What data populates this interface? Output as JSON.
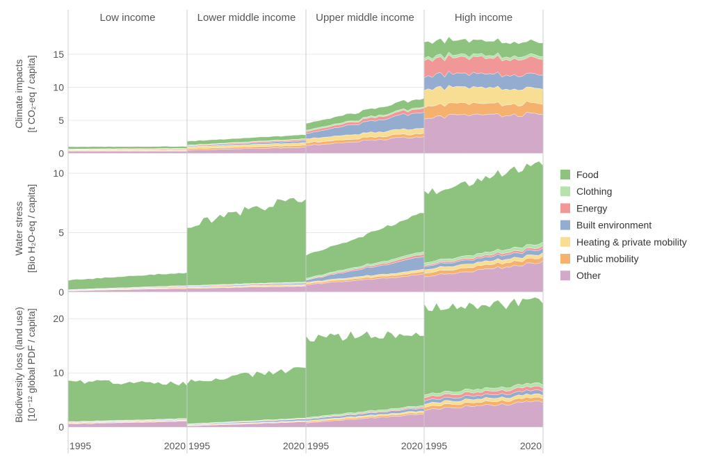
{
  "chart_data": {
    "type": "area",
    "stacked": true,
    "columns": [
      "Low income",
      "Lower middle income",
      "Upper middle income",
      "High income"
    ],
    "x_axis": {
      "ticks": [
        "1995",
        "2020"
      ]
    },
    "legend": {
      "placement": "right",
      "items": [
        {
          "name": "Food",
          "color": "#8dc27f"
        },
        {
          "name": "Clothing",
          "color": "#b5e2ad"
        },
        {
          "name": "Energy",
          "color": "#f19797"
        },
        {
          "name": "Built environment",
          "color": "#93acd0"
        },
        {
          "name": "Heating & private mobility",
          "color": "#f7de92"
        },
        {
          "name": "Public mobility",
          "color": "#f5b26e"
        },
        {
          "name": "Other",
          "color": "#d2a9c8"
        }
      ]
    },
    "series_order_bottom_to_top": [
      "Other",
      "Public mobility",
      "Heating & private mobility",
      "Built environment",
      "Energy",
      "Clothing",
      "Food"
    ],
    "rows": [
      {
        "id": "climate",
        "ylabel": [
          "Climate impacts",
          "[t CO₂-eq / capita]"
        ],
        "ylim": [
          -1,
          19
        ],
        "yticks": [
          0,
          5,
          10,
          15
        ],
        "panels": {
          "Low income": {
            "Other": [
              0.3,
              0.3
            ],
            "Public mobility": [
              0.1,
              0.1
            ],
            "Heating & private mobility": [
              0.1,
              0.1
            ],
            "Built environment": [
              0.05,
              0.1
            ],
            "Energy": [
              0.05,
              0.1
            ],
            "Clothing": [
              0.05,
              0.05
            ],
            "Food": [
              0.35,
              0.3
            ]
          },
          "Lower middle income": {
            "Other": [
              0.5,
              0.9
            ],
            "Public mobility": [
              0.2,
              0.3
            ],
            "Heating & private mobility": [
              0.3,
              0.4
            ],
            "Built environment": [
              0.1,
              0.3
            ],
            "Energy": [
              0.1,
              0.2
            ],
            "Clothing": [
              0.05,
              0.1
            ],
            "Food": [
              0.6,
              0.6
            ]
          },
          "Upper middle income": {
            "Other": [
              1.2,
              2.6
            ],
            "Public mobility": [
              0.4,
              0.5
            ],
            "Heating & private mobility": [
              0.6,
              0.8
            ],
            "Built environment": [
              0.8,
              2.5
            ],
            "Energy": [
              0.3,
              0.6
            ],
            "Clothing": [
              0.2,
              0.2
            ],
            "Food": [
              1.0,
              1.3
            ]
          },
          "High income": {
            "Other": [
              5.5,
              6.0
            ],
            "Public mobility": [
              1.8,
              1.6
            ],
            "Heating & private mobility": [
              2.6,
              2.2
            ],
            "Built environment": [
              2.0,
              2.1
            ],
            "Energy": [
              2.5,
              2.4
            ],
            "Clothing": [
              0.4,
              0.4
            ],
            "Food": [
              2.3,
              2.1
            ]
          }
        }
      },
      {
        "id": "water",
        "ylabel": [
          "Water stress",
          "[Bio H₂O-eq / capita]"
        ],
        "ylim": [
          -0.3,
          11
        ],
        "yticks": [
          0,
          5,
          10
        ],
        "panels": {
          "Low income": {
            "Other": [
              0.1,
              0.3
            ],
            "Public mobility": [
              0.02,
              0.05
            ],
            "Heating & private mobility": [
              0.02,
              0.05
            ],
            "Built environment": [
              0.02,
              0.05
            ],
            "Energy": [
              0.02,
              0.05
            ],
            "Clothing": [
              0.02,
              0.05
            ],
            "Food": [
              0.8,
              1.1
            ]
          },
          "Lower middle income": {
            "Other": [
              0.3,
              0.5
            ],
            "Public mobility": [
              0.05,
              0.05
            ],
            "Heating & private mobility": [
              0.05,
              0.1
            ],
            "Built environment": [
              0.05,
              0.1
            ],
            "Energy": [
              0.05,
              0.05
            ],
            "Clothing": [
              0.05,
              0.05
            ],
            "Food": [
              5.1,
              7.2
            ]
          },
          "Upper middle income": {
            "Other": [
              0.6,
              1.5
            ],
            "Public mobility": [
              0.1,
              0.2
            ],
            "Heating & private mobility": [
              0.1,
              0.2
            ],
            "Built environment": [
              0.2,
              1.1
            ],
            "Energy": [
              0.05,
              0.2
            ],
            "Clothing": [
              0.1,
              0.2
            ],
            "Food": [
              1.9,
              3.3
            ]
          },
          "High income": {
            "Other": [
              1.3,
              2.5
            ],
            "Public mobility": [
              0.3,
              0.4
            ],
            "Heating & private mobility": [
              0.3,
              0.3
            ],
            "Built environment": [
              0.3,
              0.4
            ],
            "Energy": [
              0.1,
              0.2
            ],
            "Clothing": [
              0.2,
              0.3
            ],
            "Food": [
              5.8,
              6.8
            ]
          }
        }
      },
      {
        "id": "biodiversity",
        "ylabel": [
          "Biodiversity loss (land use)",
          "[10⁻¹² global PDF / capita]"
        ],
        "ylim": [
          -1,
          24
        ],
        "yticks": [
          0,
          10,
          20
        ],
        "panels": {
          "Low income": {
            "Other": [
              0.6,
              1.1
            ],
            "Public mobility": [
              0.1,
              0.1
            ],
            "Heating & private mobility": [
              0.1,
              0.1
            ],
            "Built environment": [
              0.1,
              0.1
            ],
            "Energy": [
              0.05,
              0.1
            ],
            "Clothing": [
              0.05,
              0.1
            ],
            "Food": [
              7.5,
              6.4
            ]
          },
          "Lower middle income": {
            "Other": [
              0.2,
              1.0
            ],
            "Public mobility": [
              0.1,
              0.1
            ],
            "Heating & private mobility": [
              0.1,
              0.1
            ],
            "Built environment": [
              0.1,
              0.3
            ],
            "Energy": [
              0.05,
              0.1
            ],
            "Clothing": [
              0.05,
              0.1
            ],
            "Food": [
              7.8,
              9.2
            ]
          },
          "Upper middle income": {
            "Other": [
              0.8,
              2.4
            ],
            "Public mobility": [
              0.2,
              0.3
            ],
            "Heating & private mobility": [
              0.2,
              0.3
            ],
            "Built environment": [
              0.3,
              0.5
            ],
            "Energy": [
              0.1,
              0.2
            ],
            "Clothing": [
              0.2,
              0.3
            ],
            "Food": [
              14.6,
              13.5
            ]
          },
          "High income": {
            "Other": [
              3.2,
              4.8
            ],
            "Public mobility": [
              0.6,
              0.7
            ],
            "Heating & private mobility": [
              0.6,
              0.6
            ],
            "Built environment": [
              0.6,
              0.7
            ],
            "Energy": [
              0.6,
              0.7
            ],
            "Clothing": [
              0.5,
              0.6
            ],
            "Food": [
              16.0,
              14.9
            ]
          }
        }
      }
    ]
  }
}
